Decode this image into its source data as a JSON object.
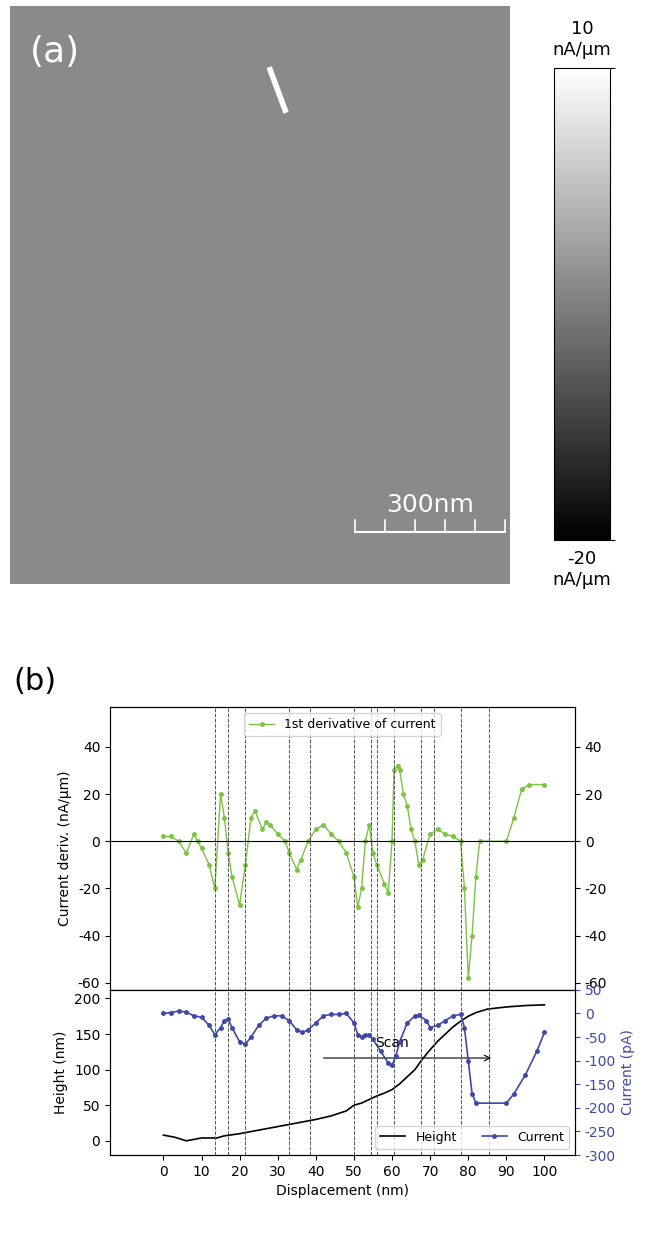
{
  "chart_data": [
    {
      "type": "image",
      "label": "(a)",
      "scale_bar": "300nm",
      "colorbar": {
        "range": [
          -20,
          10
        ],
        "ticks": [
          {
            "value": 10,
            "label": "10\nnA/µm"
          },
          {
            "value": -20,
            "label": "-20\nnA/µm"
          }
        ]
      }
    },
    {
      "type": "line",
      "label": "(b)",
      "ylabel": "Current deriv. (nA/µm)",
      "xlim": [
        -14,
        108
      ],
      "xticks": [
        0,
        10,
        20,
        30,
        40,
        50,
        60,
        70,
        80,
        90,
        100
      ],
      "ylim": [
        -63,
        57
      ],
      "yticks": [
        -60,
        -40,
        -20,
        0,
        20,
        40
      ],
      "y2lim": [
        -63,
        57
      ],
      "y2ticks": [
        -60,
        -40,
        -20,
        0,
        20,
        40
      ],
      "tick_labels": "y",
      "legend": "upper center",
      "hline": 0,
      "guides": [
        13.5,
        17,
        21.5,
        33,
        38.5,
        50,
        54.5,
        56,
        60.5,
        67.5,
        71,
        78,
        85.5
      ],
      "series": [
        {
          "name": "1st derivative of current",
          "color": "#7dc242",
          "marker": "o",
          "x": [
            0,
            2,
            4,
            6,
            8,
            9,
            10,
            12,
            13.5,
            15,
            16,
            17,
            18,
            20,
            21.5,
            23,
            24,
            26,
            27,
            28,
            30,
            32,
            33,
            35,
            36,
            38,
            40,
            42,
            44,
            46,
            48,
            50,
            51,
            52,
            53,
            54,
            55,
            56,
            58,
            59,
            60,
            60.5,
            61.5,
            62,
            63,
            64,
            65,
            66,
            67,
            68,
            70,
            72,
            74,
            76,
            78,
            79,
            80,
            81,
            82,
            83,
            90,
            92,
            94,
            96,
            100
          ],
          "values": [
            2,
            2,
            0,
            -5,
            3,
            0,
            -3,
            -10,
            -20,
            20,
            10,
            -5,
            -15,
            -27,
            -10,
            10,
            13,
            5,
            8,
            7,
            3,
            0,
            -5,
            -12,
            -8,
            0,
            5,
            7,
            3,
            0,
            -5,
            -15,
            -28,
            -20,
            0,
            7,
            -5,
            -10,
            -18,
            -22,
            0,
            30,
            32,
            30,
            20,
            15,
            5,
            0,
            -10,
            -8,
            3,
            5,
            3,
            2,
            0,
            -20,
            -58,
            -40,
            -15,
            0,
            0,
            10,
            22,
            24,
            24
          ]
        }
      ]
    },
    {
      "type": "line",
      "xlabel": "Displacement (nm)",
      "ylabel": "Height (nm)",
      "y2label": "Current (pA)",
      "xlim": [
        -14,
        108
      ],
      "xticks": [
        0,
        10,
        20,
        30,
        40,
        50,
        60,
        70,
        80,
        90,
        100
      ],
      "ylim": [
        -20,
        212
      ],
      "yticks": [
        0,
        50,
        100,
        150,
        200
      ],
      "y2lim": [
        -300,
        50
      ],
      "y2ticks": [
        -300,
        -250,
        -200,
        -150,
        -100,
        -50,
        0,
        50
      ],
      "legend": "lower right",
      "annotations": [
        {
          "text": "Scan",
          "x": 60,
          "y": 128
        }
      ],
      "series": [
        {
          "name": "Height",
          "color": "#000000",
          "marker": "none",
          "x": [
            0,
            3,
            6,
            8,
            10,
            14,
            16,
            20,
            24,
            28,
            32,
            36,
            40,
            44,
            48,
            50,
            52,
            54,
            56,
            58,
            60,
            62,
            64,
            66,
            68,
            70,
            72,
            74,
            76,
            78,
            80,
            82,
            85,
            90,
            95,
            100
          ],
          "values": [
            8,
            5,
            0,
            2,
            4,
            4,
            7,
            10,
            14,
            18,
            22,
            26,
            30,
            35,
            42,
            50,
            53,
            58,
            63,
            67,
            72,
            80,
            90,
            100,
            115,
            128,
            140,
            150,
            160,
            168,
            175,
            180,
            185,
            188,
            190,
            191
          ]
        },
        {
          "name": "Current",
          "color": "#3f48a8",
          "marker": "o",
          "axis": "y2",
          "x": [
            0,
            2,
            4,
            6,
            8,
            10,
            12,
            13.5,
            15,
            16,
            17,
            18,
            20,
            21.5,
            23,
            25,
            27,
            29,
            31,
            33,
            35,
            36.5,
            38,
            40,
            42,
            44,
            46,
            48,
            50,
            51,
            52,
            53,
            54,
            55,
            57,
            59,
            60,
            61,
            62,
            64,
            66,
            67,
            69,
            70,
            72,
            74,
            76,
            78,
            79,
            80,
            81,
            82,
            90,
            92,
            95,
            98,
            100
          ],
          "values": [
            0,
            2,
            5,
            3,
            -5,
            -8,
            -25,
            -45,
            -30,
            -15,
            -12,
            -30,
            -60,
            -65,
            -50,
            -25,
            -10,
            -5,
            -5,
            -15,
            -35,
            -40,
            -35,
            -20,
            -5,
            -2,
            -2,
            0,
            -20,
            -45,
            -50,
            -45,
            -45,
            -55,
            -80,
            -105,
            -110,
            -90,
            -60,
            -20,
            -5,
            -3,
            -15,
            -30,
            -25,
            -15,
            -5,
            -2,
            -30,
            -100,
            -170,
            -190,
            -190,
            -170,
            -130,
            -80,
            -40
          ]
        }
      ]
    }
  ]
}
